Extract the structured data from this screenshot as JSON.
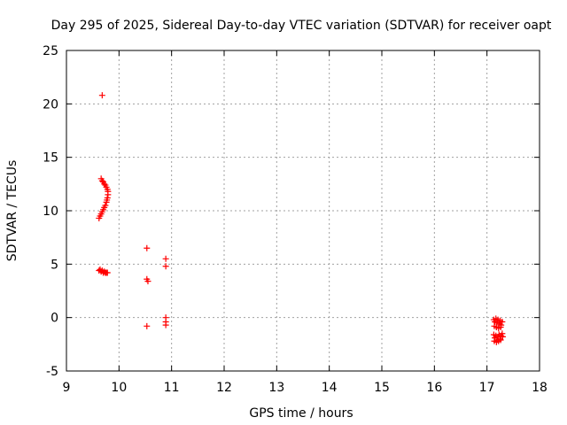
{
  "chart_data": {
    "type": "scatter",
    "title": "Day 295 of 2025, Sidereal Day-to-day VTEC variation (SDTVAR) for receiver oapt",
    "xlabel": "GPS time / hours",
    "ylabel": "SDTVAR / TECUs",
    "xlim": [
      9,
      18
    ],
    "ylim": [
      -5,
      25
    ],
    "xticks": [
      9,
      10,
      11,
      12,
      13,
      14,
      15,
      16,
      17,
      18
    ],
    "yticks": [
      -5,
      0,
      5,
      10,
      15,
      20,
      25
    ],
    "grid": true,
    "marker": "+",
    "color": "#ff0000",
    "series": [
      {
        "name": "SDTVAR",
        "points": [
          [
            9.68,
            20.8
          ],
          [
            9.66,
            13.0
          ],
          [
            9.68,
            12.8
          ],
          [
            9.7,
            12.7
          ],
          [
            9.72,
            12.5
          ],
          [
            9.74,
            12.4
          ],
          [
            9.76,
            12.2
          ],
          [
            9.78,
            12.0
          ],
          [
            9.79,
            11.8
          ],
          [
            9.79,
            11.5
          ],
          [
            9.78,
            11.2
          ],
          [
            9.77,
            11.0
          ],
          [
            9.76,
            10.8
          ],
          [
            9.74,
            10.5
          ],
          [
            9.72,
            10.3
          ],
          [
            9.7,
            10.1
          ],
          [
            9.68,
            9.9
          ],
          [
            9.66,
            9.7
          ],
          [
            9.64,
            9.5
          ],
          [
            9.62,
            9.3
          ],
          [
            9.62,
            4.4
          ],
          [
            9.64,
            4.5
          ],
          [
            9.66,
            4.3
          ],
          [
            9.68,
            4.4
          ],
          [
            9.7,
            4.2
          ],
          [
            9.72,
            4.3
          ],
          [
            9.74,
            4.2
          ],
          [
            9.76,
            4.2
          ],
          [
            9.78,
            4.2
          ],
          [
            10.53,
            6.5
          ],
          [
            10.53,
            3.6
          ],
          [
            10.55,
            3.4
          ],
          [
            10.53,
            -0.8
          ],
          [
            10.89,
            5.5
          ],
          [
            10.89,
            4.8
          ],
          [
            10.89,
            0.0
          ],
          [
            10.89,
            -0.4
          ],
          [
            10.89,
            -0.7
          ],
          [
            17.13,
            -0.2
          ],
          [
            17.15,
            -0.4
          ],
          [
            17.17,
            -0.1
          ],
          [
            17.19,
            -0.5
          ],
          [
            17.21,
            -0.2
          ],
          [
            17.23,
            -0.6
          ],
          [
            17.25,
            -0.3
          ],
          [
            17.27,
            -0.7
          ],
          [
            17.29,
            -0.4
          ],
          [
            17.14,
            -0.8
          ],
          [
            17.18,
            -0.9
          ],
          [
            17.22,
            -1.0
          ],
          [
            17.26,
            -0.9
          ],
          [
            17.13,
            -1.6
          ],
          [
            17.15,
            -1.9
          ],
          [
            17.17,
            -1.7
          ],
          [
            17.19,
            -2.1
          ],
          [
            17.21,
            -1.8
          ],
          [
            17.23,
            -1.6
          ],
          [
            17.25,
            -2.0
          ],
          [
            17.27,
            -1.7
          ],
          [
            17.29,
            -1.5
          ],
          [
            17.14,
            -2.2
          ],
          [
            17.18,
            -2.3
          ],
          [
            17.22,
            -2.2
          ],
          [
            17.26,
            -2.1
          ],
          [
            17.3,
            -1.8
          ]
        ]
      }
    ]
  }
}
